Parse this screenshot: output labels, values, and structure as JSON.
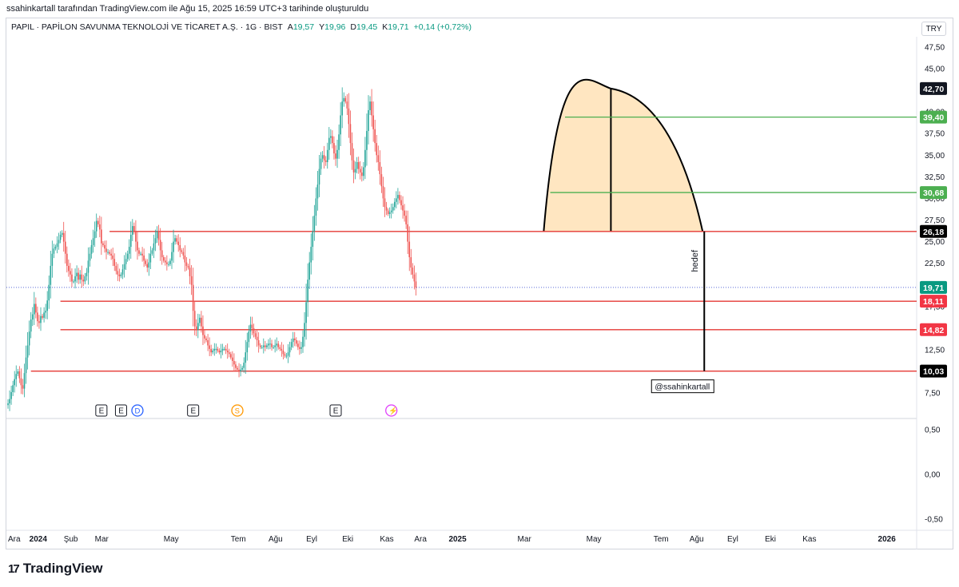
{
  "caption": "ssahinkartall tarafından TradingView.com ile Ağu 15, 2025 16:59 UTC+3 tarihinde oluşturuldu",
  "legend": {
    "symbol": "PAPIL · PAPİLON SAVUNMA TEKNOLOJİ VE TİCARET A.Ş. · 1G · BIST",
    "o_label": "A",
    "o": "19,57",
    "h_label": "Y",
    "h": "19,96",
    "l_label": "D",
    "l": "19,45",
    "c_label": "K",
    "c": "19,71",
    "change": "+0,14 (+0,72%)"
  },
  "currency": "TRY",
  "brand": {
    "logo": "17",
    "name": "TradingView"
  },
  "chart_data": {
    "type": "line",
    "description_free": true,
    "y_ticks": [
      "47,50",
      "45,00",
      "40,00",
      "37,50",
      "35,00",
      "32,50",
      "30,00",
      "27,50",
      "25,00",
      "22,50",
      "17,50",
      "12,50",
      "10,00",
      "7,50"
    ],
    "y_values": [
      47.5,
      45,
      40,
      37.5,
      35,
      32.5,
      30,
      27.5,
      25,
      22.5,
      17.5,
      12.5,
      10,
      7.5
    ],
    "ylim": [
      5,
      50
    ],
    "x_ticks": [
      {
        "label": "Ara",
        "i": 0
      },
      {
        "label": "2024",
        "i": 13,
        "bold": true
      },
      {
        "label": "Şub",
        "i": 34
      },
      {
        "label": "Mar",
        "i": 53
      },
      {
        "label": "May",
        "i": 95
      },
      {
        "label": "Tem",
        "i": 136
      },
      {
        "label": "Ağu",
        "i": 159
      },
      {
        "label": "Eyl",
        "i": 182
      },
      {
        "label": "Eki",
        "i": 204
      },
      {
        "label": "Kas",
        "i": 227
      },
      {
        "label": "Ara",
        "i": 248
      },
      {
        "label": "2025",
        "i": 269,
        "bold": true
      },
      {
        "label": "Mar",
        "i": 311
      },
      {
        "label": "May",
        "i": 353
      },
      {
        "label": "Tem",
        "i": 394
      },
      {
        "label": "Ağu",
        "i": 416
      },
      {
        "label": "Eyl",
        "i": 439
      },
      {
        "label": "Eki",
        "i": 462
      },
      {
        "label": "Kas",
        "i": 485
      },
      {
        "label": "2026",
        "i": 531,
        "bold": true
      }
    ],
    "series": [
      {
        "values": [
          6.3,
          6.8,
          7.6,
          8.4,
          9.1,
          9.7,
          10.0,
          9.2,
          8.4,
          8.0,
          9.8,
          11.6,
          13.0,
          14.6,
          16.0,
          16.6,
          17.8,
          16.8,
          15.8,
          15.6,
          16.4,
          16.2,
          16.8,
          17.0,
          18.2,
          20.0,
          22.2,
          23.6,
          24.2,
          24.4,
          24.8,
          25.2,
          25.8,
          26.0,
          25.0,
          23.6,
          22.2,
          21.6,
          21.2,
          20.4,
          20.4,
          21.0,
          21.4,
          20.6,
          21.2,
          20.6,
          20.4,
          21.0,
          21.4,
          22.8,
          23.6,
          24.6,
          25.4,
          26.2,
          27.4,
          27.0,
          26.4,
          24.8,
          24.6,
          24.2,
          23.8,
          23.8,
          23.6,
          23.4,
          23.0,
          22.2,
          21.6,
          21.2,
          21.0,
          21.2,
          21.8,
          22.4,
          23.0,
          23.6,
          24.4,
          25.8,
          26.8,
          26.2,
          25.0,
          24.0,
          23.6,
          23.6,
          23.4,
          22.8,
          22.4,
          22.0,
          22.6,
          23.6,
          24.0,
          24.8,
          25.4,
          26.2,
          25.2,
          24.0,
          23.2,
          22.8,
          22.6,
          22.4,
          22.4,
          22.8,
          23.8,
          25.0,
          25.4,
          25.0,
          24.6,
          24.0,
          23.8,
          23.4,
          22.6,
          22.2,
          22.0,
          21.0,
          20.0,
          17.0,
          15.2,
          14.8,
          15.6,
          16.2,
          15.2,
          14.2,
          13.8,
          13.6,
          13.0,
          12.6,
          12.2,
          12.4,
          12.6,
          12.6,
          12.4,
          12.2,
          12.4,
          12.6,
          12.6,
          12.4,
          12.2,
          12.0,
          11.6,
          11.2,
          10.8,
          10.4,
          10.2,
          10.0,
          10.2,
          10.4,
          11.0,
          12.2,
          13.4,
          14.6,
          15.4,
          15.0,
          14.4,
          14.0,
          13.6,
          13.0,
          12.8,
          12.8,
          13.0,
          12.8,
          13.0,
          13.2,
          13.2,
          12.8,
          12.8,
          13.0,
          13.2,
          12.8,
          12.6,
          12.4,
          12.0,
          11.8,
          11.8,
          12.2,
          12.8,
          13.4,
          13.8,
          13.6,
          13.2,
          12.8,
          12.6,
          12.8,
          14.0,
          15.6,
          18.0,
          20.6,
          22.6,
          24.4,
          26.2,
          28.0,
          30.0,
          31.6,
          33.4,
          34.6,
          35.0,
          34.4,
          34.2,
          35.6,
          37.0,
          37.2,
          36.4,
          35.2,
          34.6,
          35.6,
          37.4,
          39.6,
          41.2,
          41.6,
          41.2,
          40.4,
          38.6,
          36.4,
          34.4,
          33.0,
          33.4,
          34.2,
          33.4,
          33.0,
          32.6,
          33.6,
          35.6,
          37.8,
          40.2,
          41.2,
          39.6,
          38.0,
          36.4,
          35.0,
          34.2,
          32.8,
          31.4,
          30.0,
          29.0,
          28.6,
          28.2,
          28.4,
          28.6,
          29.0,
          29.6,
          30.0,
          30.4,
          29.8,
          29.2,
          28.6,
          28.0,
          27.0,
          25.0,
          23.2,
          22.0,
          21.2,
          20.4,
          19.7
        ]
      }
    ],
    "levels": [
      {
        "value": 39.4,
        "label": "39,40",
        "color": "#4caf50"
      },
      {
        "value": 30.68,
        "label": "30,68",
        "color": "#4caf50"
      },
      {
        "value": 26.18,
        "label": "26,18",
        "color": "#e53935"
      },
      {
        "value": 18.11,
        "label": "18,11",
        "color": "#e53935"
      },
      {
        "value": 14.82,
        "label": "14,82",
        "color": "#e53935"
      },
      {
        "value": 10.03,
        "label": "10,03",
        "color": "#e53935"
      }
    ],
    "marker_labels": [
      {
        "value": 42.7,
        "label": "42,70",
        "color": "#131722"
      },
      {
        "value": 19.71,
        "label": "19,71",
        "color": "#089981"
      }
    ],
    "annotations": {
      "target_text": "hedef",
      "watermark_tag": "@ssahinkartall"
    },
    "events": [
      {
        "label": "E",
        "i": 57,
        "kind": "earnings"
      },
      {
        "label": "E",
        "i": 69,
        "kind": "earnings"
      },
      {
        "label": "D",
        "i": 79,
        "kind": "dividend"
      },
      {
        "label": "E",
        "i": 113,
        "kind": "earnings"
      },
      {
        "label": "S",
        "i": 140,
        "kind": "split"
      },
      {
        "label": "E",
        "i": 200,
        "kind": "earnings"
      },
      {
        "label": "⚡",
        "i": 234,
        "kind": "flash"
      }
    ],
    "sub_y_ticks": [
      "0,50",
      "0,00",
      "-0,50"
    ],
    "sub_y_values": [
      0.5,
      0.0,
      -0.5
    ]
  }
}
